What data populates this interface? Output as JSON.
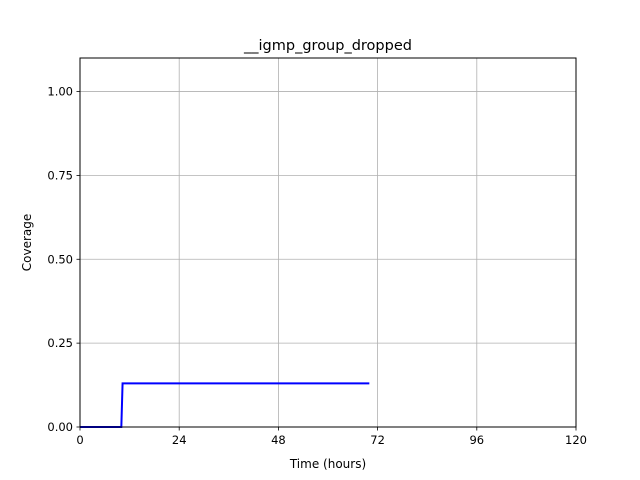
{
  "chart_data": {
    "type": "line",
    "title": "__igmp_group_dropped",
    "xlabel": "Time (hours)",
    "ylabel": "Coverage",
    "xlim": [
      0,
      120
    ],
    "ylim": [
      0,
      1.1
    ],
    "xticks": [
      0,
      24,
      48,
      72,
      96,
      120
    ],
    "xtick_labels": [
      "0",
      "24",
      "48",
      "72",
      "96",
      "120"
    ],
    "yticks": [
      0,
      0.25,
      0.5,
      0.75,
      1.0
    ],
    "ytick_labels": [
      "0.00",
      "0.25",
      "0.50",
      "0.75",
      "1.00"
    ],
    "grid": true,
    "series": [
      {
        "color": "#0000ff",
        "x": [
          0,
          10,
          10.3,
          70
        ],
        "y": [
          0,
          0,
          0.13,
          0.13
        ]
      }
    ]
  }
}
